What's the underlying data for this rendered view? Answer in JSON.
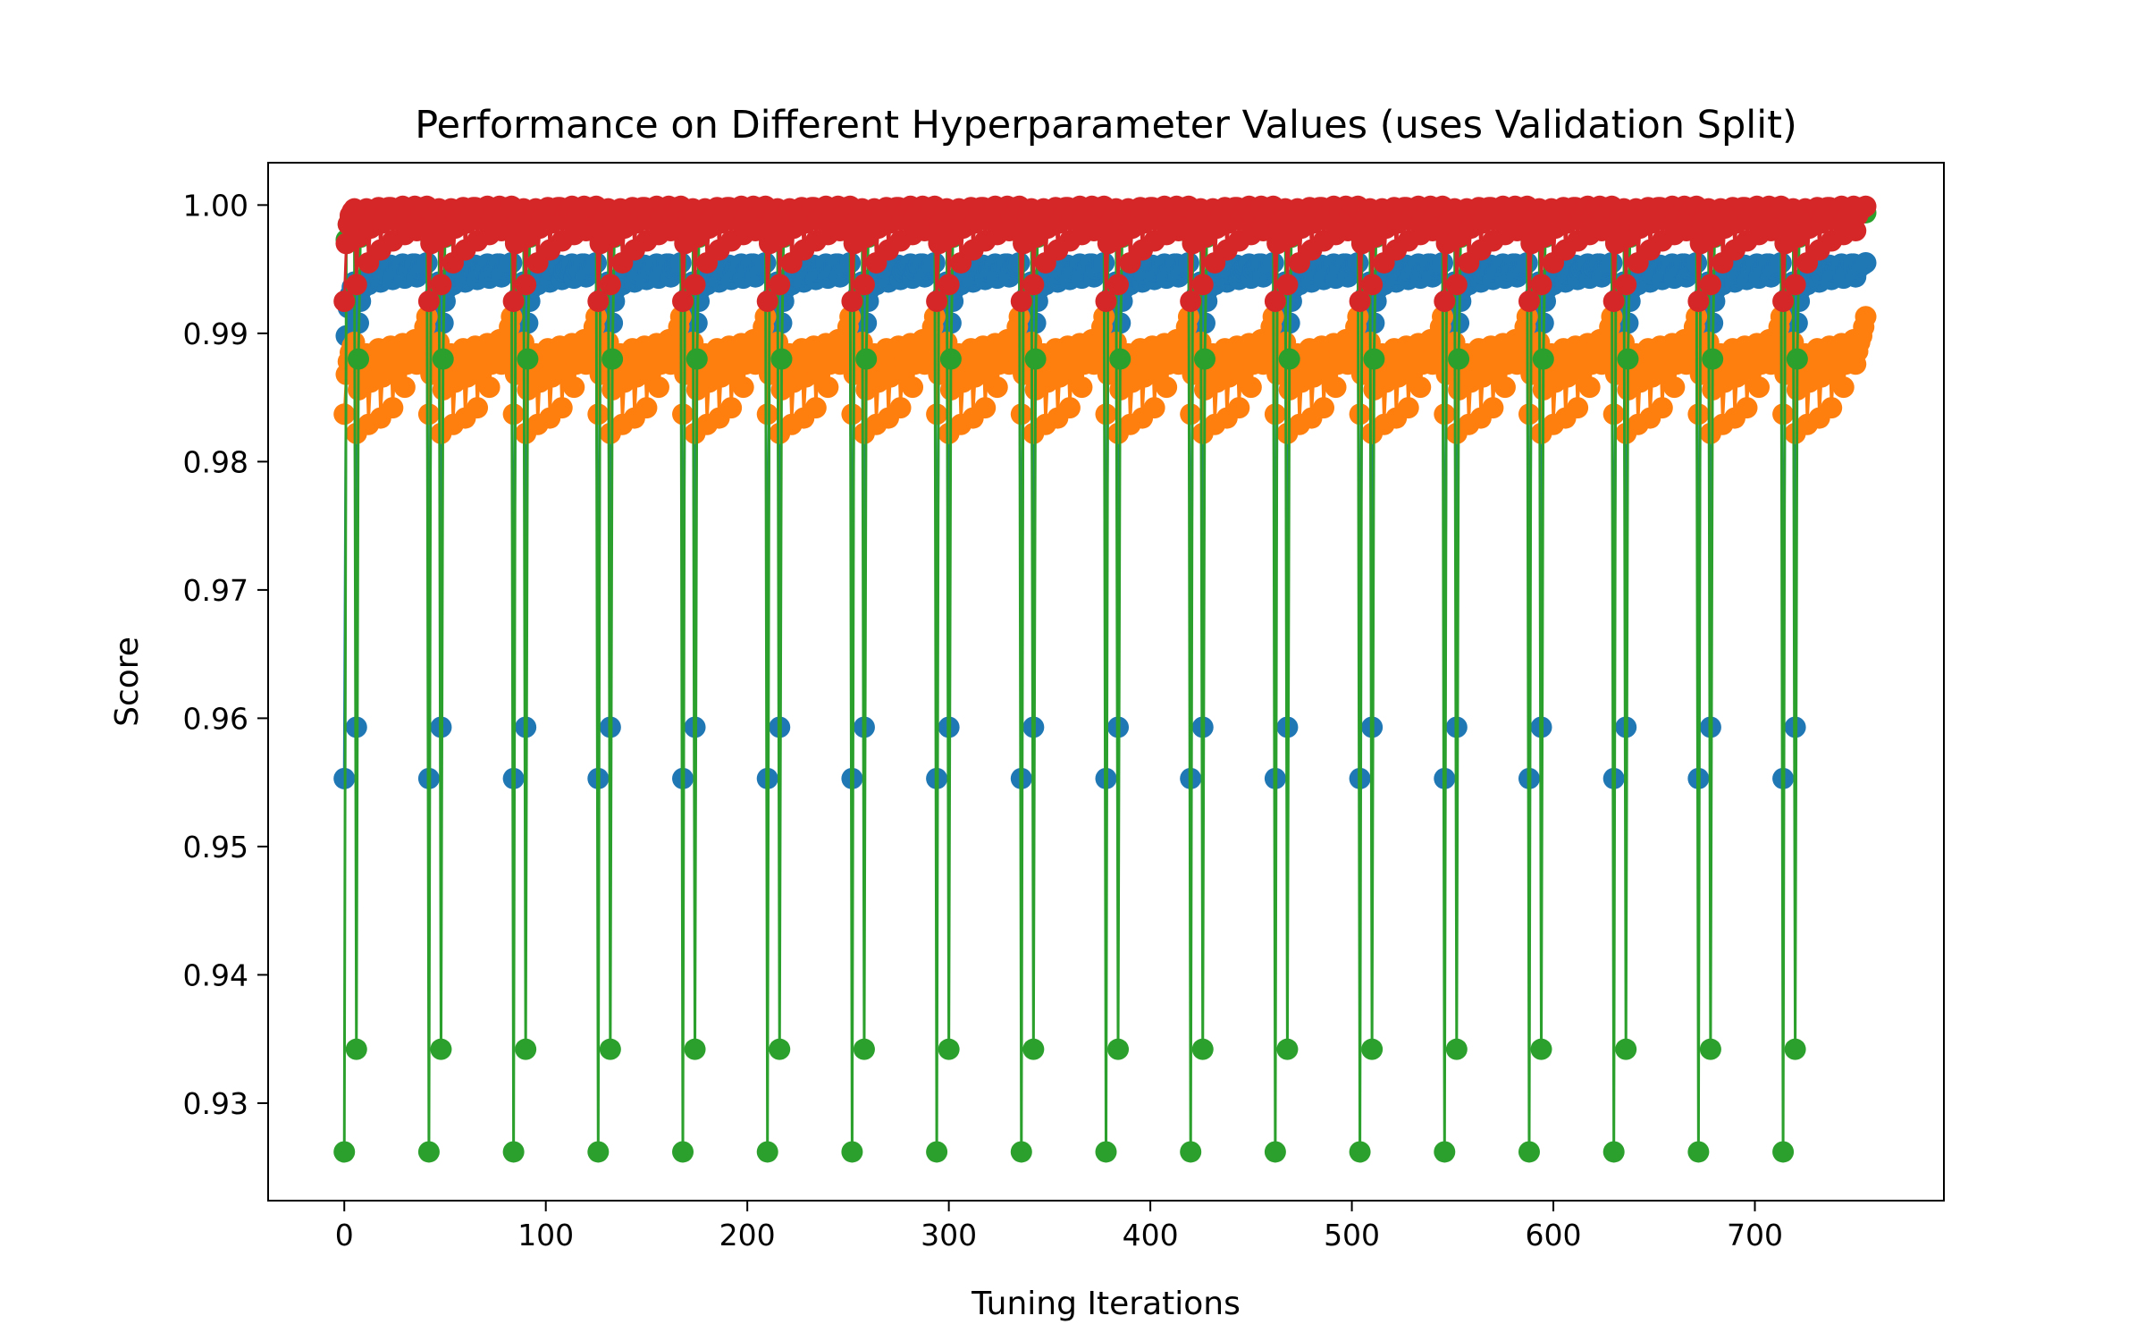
{
  "chart_data": {
    "type": "line",
    "title": "Performance on Different Hyperparameter Values (uses Validation Split)",
    "xlabel": "Tuning Iterations",
    "ylabel": "Score",
    "xlim": [
      -37.8,
      793.8
    ],
    "ylim": [
      0.9224,
      1.0033
    ],
    "xticks": [
      0,
      100,
      200,
      300,
      400,
      500,
      600,
      700
    ],
    "yticks": [
      0.93,
      0.94,
      0.95,
      0.96,
      0.97,
      0.98,
      0.99,
      1.0
    ],
    "ytick_labels": [
      "0.93",
      "0.94",
      "0.95",
      "0.96",
      "0.97",
      "0.98",
      "0.99",
      "1.00"
    ],
    "grid": false,
    "legend": "none",
    "markers": true,
    "block_count": 18,
    "block_length": 42,
    "series": [
      {
        "color": "#1f77b4",
        "block_values": [
          0.9553,
          0.9898,
          0.992,
          0.993,
          0.9936,
          0.994,
          0.9593,
          0.9908,
          0.9925,
          0.9935,
          0.994,
          0.9944,
          0.9938,
          0.9945,
          0.9948,
          0.995,
          0.9951,
          0.9952,
          0.994,
          0.9946,
          0.9949,
          0.9951,
          0.9952,
          0.9953,
          0.9942,
          0.9948,
          0.995,
          0.9952,
          0.9953,
          0.9954,
          0.9943,
          0.9949,
          0.9951,
          0.9953,
          0.9954,
          0.9954,
          0.9944,
          0.995,
          0.9952,
          0.9953,
          0.9954,
          0.9955
        ]
      },
      {
        "color": "#ff7f0e",
        "block_values": [
          0.9837,
          0.9868,
          0.9878,
          0.9885,
          0.989,
          0.9893,
          0.9822,
          0.9856,
          0.9869,
          0.9876,
          0.9881,
          0.9884,
          0.9829,
          0.9862,
          0.9874,
          0.988,
          0.9885,
          0.9888,
          0.9834,
          0.9866,
          0.9877,
          0.9883,
          0.9887,
          0.989,
          0.9842,
          0.9869,
          0.988,
          0.9886,
          0.989,
          0.9892,
          0.9858,
          0.9876,
          0.9885,
          0.989,
          0.9893,
          0.9895,
          0.9876,
          0.9886,
          0.9893,
          0.9898,
          0.9905,
          0.9913
        ]
      },
      {
        "color": "#2ca02c",
        "block_values": [
          0.9262,
          0.9973,
          0.9985,
          0.999,
          0.9992,
          0.9993,
          0.9342,
          0.988,
          0.9975,
          0.9985,
          0.9989,
          0.9991,
          0.9988,
          0.9992,
          0.9993,
          0.9994,
          0.9994,
          0.9994,
          0.999,
          0.9993,
          0.9993,
          0.9994,
          0.9994,
          0.9994,
          0.9991,
          0.9993,
          0.9994,
          0.9994,
          0.9994,
          0.9994,
          0.9991,
          0.9993,
          0.9994,
          0.9994,
          0.9994,
          0.9994,
          0.9991,
          0.9993,
          0.9994,
          0.9994,
          0.9994,
          0.9994
        ]
      },
      {
        "color": "#d62728",
        "block_values": [
          0.9925,
          0.997,
          0.9985,
          0.9992,
          0.9995,
          0.9997,
          0.9938,
          0.9975,
          0.9988,
          0.9993,
          0.9996,
          0.9997,
          0.9955,
          0.9982,
          0.9991,
          0.9995,
          0.9997,
          0.9998,
          0.9965,
          0.9986,
          0.9993,
          0.9996,
          0.9998,
          0.9998,
          0.9972,
          0.9989,
          0.9994,
          0.9997,
          0.9998,
          0.9999,
          0.9977,
          0.9991,
          0.9995,
          0.9997,
          0.9998,
          0.9999,
          0.998,
          0.9992,
          0.9996,
          0.9998,
          0.9998,
          0.9999
        ]
      }
    ]
  }
}
